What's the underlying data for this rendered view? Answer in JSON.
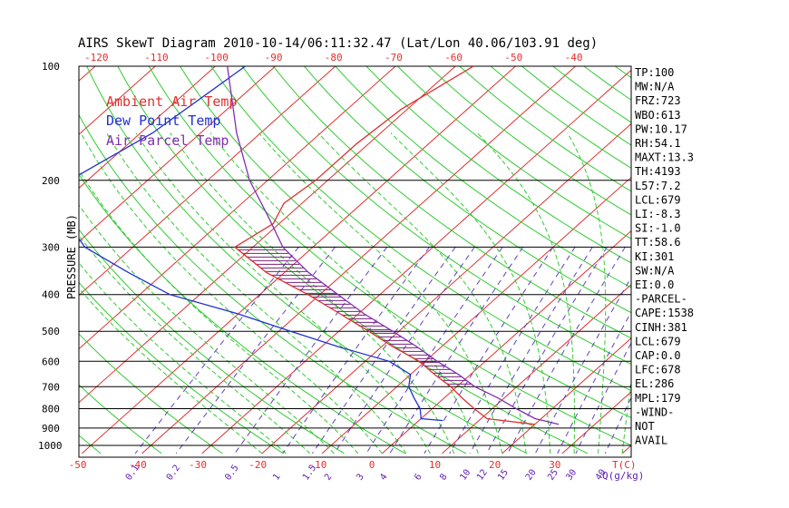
{
  "chart_data": {
    "type": "line",
    "title": "AIRS SkewT Diagram 2010-10-14/06:11:32.47 (Lat/Lon 40.06/103.91 deg)",
    "ylabel": "PRESSURE (MB)",
    "xlabel": "T(C)",
    "mixing_ratio_unit_label": "Q(g/kg)",
    "pressure_levels": [
      100,
      200,
      300,
      400,
      500,
      600,
      700,
      800,
      900,
      1000
    ],
    "top_temp_ticks": [
      -120,
      -110,
      -100,
      -90,
      -80,
      -70,
      -60,
      -50,
      -40
    ],
    "bottom_temp_ticks": [
      -50,
      -40,
      -30,
      -20,
      -10,
      0,
      10,
      20,
      30
    ],
    "mixing_ratio_labels": [
      "0.1",
      "0.2",
      "0.5",
      "1",
      "1.5",
      "2",
      "3",
      "4",
      "6",
      "8",
      "10",
      "12",
      "15",
      "20",
      "25",
      "30",
      "40"
    ],
    "mixing_ratio_values": [
      0.1,
      0.2,
      0.5,
      1,
      1.5,
      2,
      3,
      4,
      6,
      8,
      10,
      12,
      15,
      20,
      25,
      30,
      40
    ],
    "xlim_at_1000mb": [
      -52,
      40
    ],
    "legend": [
      {
        "name": "Ambient Air Temp",
        "color": "#e03030"
      },
      {
        "name": "Dew Point Temp",
        "color": "#2030d0"
      },
      {
        "name": "Air Parcel Temp",
        "color": "#8030b0"
      }
    ],
    "series": [
      {
        "name": "Ambient Air Temp",
        "color": "#e03030",
        "points": [
          [
            100,
            -57
          ],
          [
            130,
            -61
          ],
          [
            160,
            -62
          ],
          [
            200,
            -62
          ],
          [
            230,
            -63
          ],
          [
            260,
            -61
          ],
          [
            300,
            -63
          ],
          [
            350,
            -53
          ],
          [
            400,
            -42
          ],
          [
            450,
            -33
          ],
          [
            500,
            -25
          ],
          [
            550,
            -18
          ],
          [
            600,
            -11
          ],
          [
            650,
            -6
          ],
          [
            700,
            -1
          ],
          [
            750,
            3
          ],
          [
            800,
            7
          ],
          [
            850,
            11
          ],
          [
            880,
            20
          ]
        ]
      },
      {
        "name": "Dew Point Temp",
        "color": "#2030d0",
        "points": [
          [
            100,
            -95
          ],
          [
            150,
            -98
          ],
          [
            200,
            -103
          ],
          [
            250,
            -97
          ],
          [
            300,
            -88
          ],
          [
            350,
            -76
          ],
          [
            400,
            -65
          ],
          [
            450,
            -50
          ],
          [
            500,
            -38
          ],
          [
            550,
            -27
          ],
          [
            600,
            -16
          ],
          [
            650,
            -10
          ],
          [
            700,
            -8
          ],
          [
            750,
            -5
          ],
          [
            800,
            -2
          ],
          [
            850,
            0
          ],
          [
            860,
            4
          ]
        ]
      },
      {
        "name": "Air Parcel Temp",
        "color": "#8030b0",
        "points": [
          [
            100,
            -98
          ],
          [
            150,
            -84
          ],
          [
            200,
            -73
          ],
          [
            250,
            -63
          ],
          [
            300,
            -55
          ],
          [
            350,
            -46
          ],
          [
            400,
            -37
          ],
          [
            450,
            -29
          ],
          [
            500,
            -21
          ],
          [
            550,
            -14
          ],
          [
            600,
            -8
          ],
          [
            650,
            -2
          ],
          [
            700,
            3
          ],
          [
            750,
            9
          ],
          [
            800,
            14
          ],
          [
            850,
            19
          ],
          [
            880,
            24
          ]
        ]
      }
    ],
    "cape_region_pmb": [
      300,
      700
    ],
    "indices": [
      {
        "text": "TP:100"
      },
      {
        "text": "MW:N/A"
      },
      {
        "text": "FRZ:723"
      },
      {
        "text": "WBO:613"
      },
      {
        "text": "PW:10.17"
      },
      {
        "text": "RH:54.1"
      },
      {
        "text": "MAXT:13.3"
      },
      {
        "text": "TH:4193"
      },
      {
        "text": "L57:7.2"
      },
      {
        "text": "LCL:679"
      },
      {
        "text": "LI:-8.3"
      },
      {
        "text": "SI:-1.0"
      },
      {
        "text": "TT:58.6"
      },
      {
        "text": "KI:301"
      },
      {
        "text": "SW:N/A"
      },
      {
        "text": "EI:0.0"
      },
      {
        "text": "-PARCEL-"
      },
      {
        "text": "CAPE:1538"
      },
      {
        "text": "CINH:381"
      },
      {
        "text": "LCL:679"
      },
      {
        "text": "CAP:0.0"
      },
      {
        "text": "LFC:678"
      },
      {
        "text": "EL:286"
      },
      {
        "text": "MPL:179"
      },
      {
        "text": "-WIND-"
      },
      {
        "text": "NOT"
      },
      {
        "text": "AVAIL"
      }
    ],
    "colors": {
      "isotherm": "#e03030",
      "dry_adiabat": "#30cc30",
      "moist_adiabat": "#30cc30",
      "mixing_ratio": "#6040c0",
      "isobar": "#000000",
      "tick_text": "#e03030",
      "mixing_text": "#6020b0"
    }
  }
}
